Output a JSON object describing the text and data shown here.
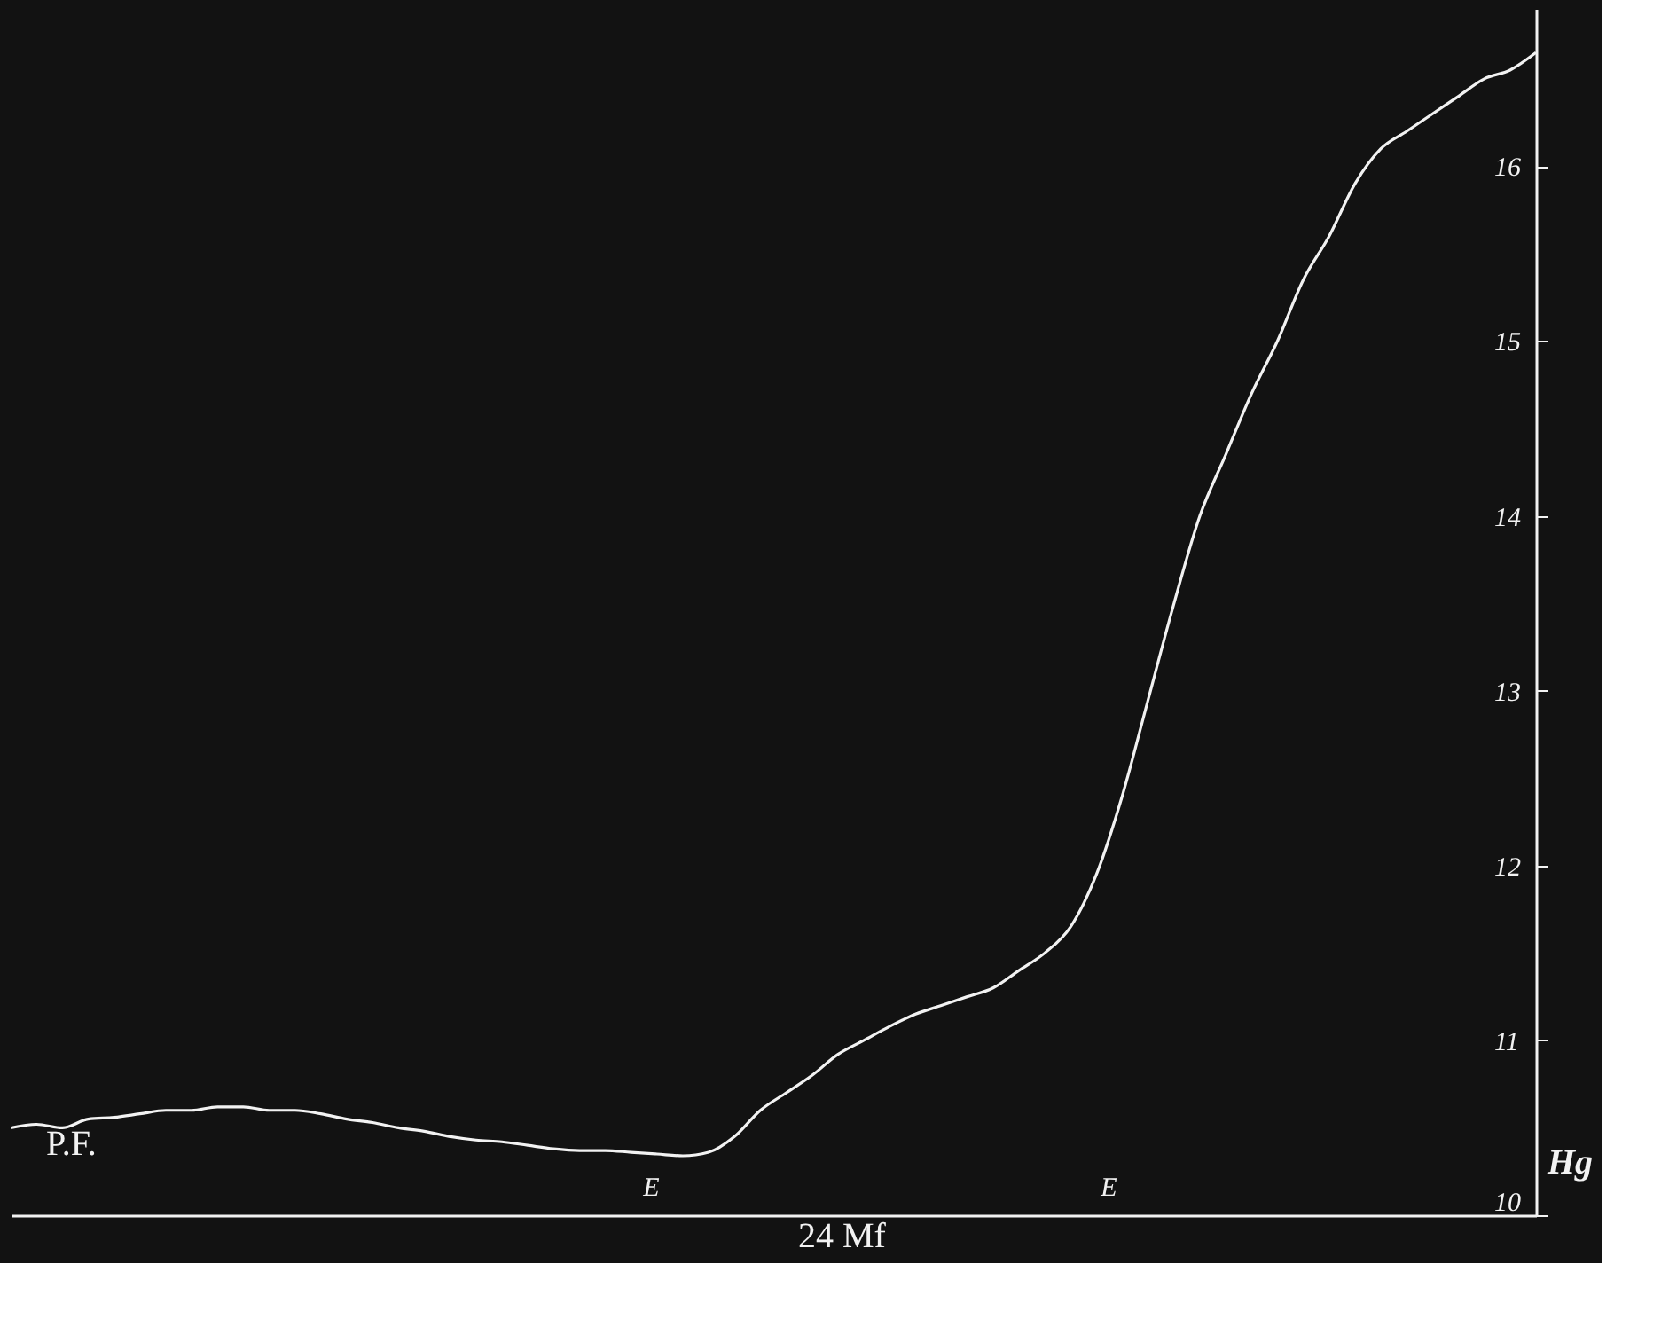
{
  "chart_data": {
    "type": "line",
    "categories": [
      null,
      null,
      null,
      null,
      null,
      null,
      null,
      null,
      null,
      null,
      null,
      null,
      null,
      null,
      null,
      null,
      null,
      null,
      null,
      null,
      null,
      null,
      null,
      null,
      null,
      null,
      null,
      null,
      null,
      null,
      null,
      null,
      null,
      null,
      null,
      null,
      null,
      null,
      null,
      null,
      null,
      null,
      null,
      null,
      null,
      null,
      null,
      null,
      null,
      null,
      null,
      null,
      null,
      null,
      null,
      null,
      null,
      null,
      null,
      null
    ],
    "series": [
      {
        "color": "#f2f2f2",
        "values": [
          10.5,
          10.52,
          10.5,
          10.55,
          10.56,
          10.58,
          10.6,
          10.6,
          10.62,
          10.62,
          10.6,
          10.6,
          10.58,
          10.55,
          10.53,
          10.5,
          10.48,
          10.45,
          10.43,
          10.42,
          10.4,
          10.38,
          10.37,
          10.37,
          10.36,
          10.35,
          10.34,
          10.36,
          10.45,
          10.6,
          10.7,
          10.8,
          10.92,
          11.0,
          11.08,
          11.15,
          11.2,
          11.25,
          11.3,
          11.4,
          11.5,
          11.65,
          11.95,
          12.4,
          12.95,
          13.5,
          14.0,
          14.35,
          14.7,
          15.0,
          15.35,
          15.6,
          15.9,
          16.1,
          16.2,
          16.3,
          16.4,
          16.5,
          16.55,
          16.65
        ]
      }
    ],
    "ylabel": "Hg",
    "ylim": [
      10,
      16.9
    ],
    "yticks": [
      10,
      11,
      12,
      13,
      14,
      15,
      16
    ],
    "tick_labels": "y",
    "grid": false,
    "marker": "none",
    "line_style": "solid",
    "annotations": [
      "P.F.",
      "E",
      "E",
      "24 Mf"
    ]
  }
}
